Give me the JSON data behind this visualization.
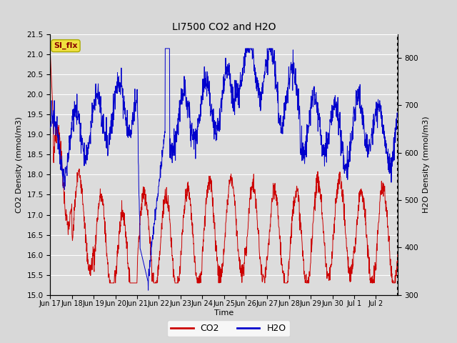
{
  "title": "LI7500 CO2 and H2O",
  "xlabel": "Time",
  "ylabel_left": "CO2 Density (mmol/m3)",
  "ylabel_right": "H2O Density (mmol/m3)",
  "ylim_left": [
    15.0,
    21.5
  ],
  "ylim_right": [
    300,
    850
  ],
  "xtick_labels": [
    "Jun 17",
    "Jun 18",
    "Jun 19",
    "Jun 20",
    "Jun 21",
    "Jun 22",
    "Jun 23",
    "Jun 24",
    "Jun 25",
    "Jun 26",
    "Jun 27",
    "Jun 28",
    "Jun 29",
    "Jun 30",
    "Jul 1",
    "Jul 2"
  ],
  "bg_color": "#d8d8d8",
  "plot_bg_color": "#dcdcdc",
  "line_color_co2": "#cc0000",
  "line_color_h2o": "#0000cc",
  "legend_co2": "CO2",
  "legend_h2o": "H2O",
  "watermark_text": "SI_flx",
  "watermark_bg": "#f0e040",
  "watermark_fg": "#880000"
}
